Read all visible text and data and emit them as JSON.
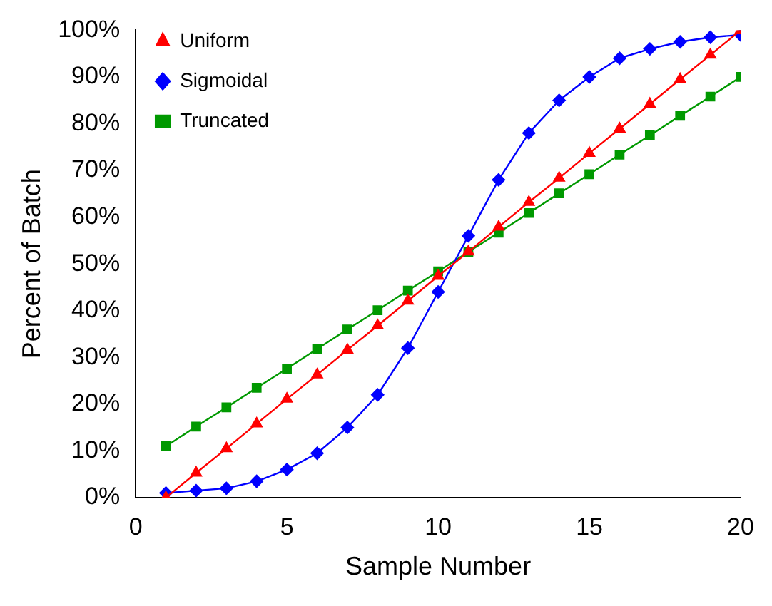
{
  "chart_data": {
    "type": "line",
    "xlabel": "Sample Number",
    "ylabel": "Percent of Batch",
    "x": [
      1,
      2,
      3,
      4,
      5,
      6,
      7,
      8,
      9,
      10,
      11,
      12,
      13,
      14,
      15,
      16,
      17,
      18,
      19,
      20
    ],
    "series": [
      {
        "name": "Uniform",
        "color": "#ff0000",
        "marker": "triangle",
        "values": [
          0,
          5.3,
          10.5,
          15.8,
          21.1,
          26.3,
          31.6,
          36.8,
          42.1,
          47.4,
          52.6,
          57.9,
          63.2,
          68.4,
          73.7,
          78.9,
          84.2,
          89.5,
          94.7,
          100
        ]
      },
      {
        "name": "Sigmoidal",
        "color": "#0000ff",
        "marker": "diamond",
        "values": [
          1,
          1.5,
          2,
          3.5,
          6,
          9.5,
          15,
          22,
          32,
          44,
          56,
          68,
          78,
          85,
          90,
          94,
          96,
          97.5,
          98.5,
          99
        ]
      },
      {
        "name": "Truncated",
        "color": "#009900",
        "marker": "square",
        "values": [
          11,
          15.2,
          19.3,
          23.5,
          27.6,
          31.8,
          36,
          40.1,
          44.3,
          48.4,
          52.6,
          56.7,
          60.9,
          65.1,
          69.2,
          73.4,
          77.5,
          81.7,
          85.8,
          90
        ]
      }
    ],
    "xlim": [
      0,
      20
    ],
    "xticks": [
      0,
      5,
      10,
      15,
      20
    ],
    "ylim": [
      0,
      100
    ],
    "yticks": [
      {
        "value": 0,
        "label": "0%"
      },
      {
        "value": 10,
        "label": "10%"
      },
      {
        "value": 20,
        "label": "20%"
      },
      {
        "value": 30,
        "label": "30%"
      },
      {
        "value": 40,
        "label": "40%"
      },
      {
        "value": 50,
        "label": "50%"
      },
      {
        "value": 60,
        "label": "60%"
      },
      {
        "value": 70,
        "label": "70%"
      },
      {
        "value": 80,
        "label": "80%"
      },
      {
        "value": 90,
        "label": "90%"
      },
      {
        "value": 100,
        "label": "100%"
      }
    ],
    "grid": false,
    "legend": "top left",
    "line_style": "solid"
  }
}
